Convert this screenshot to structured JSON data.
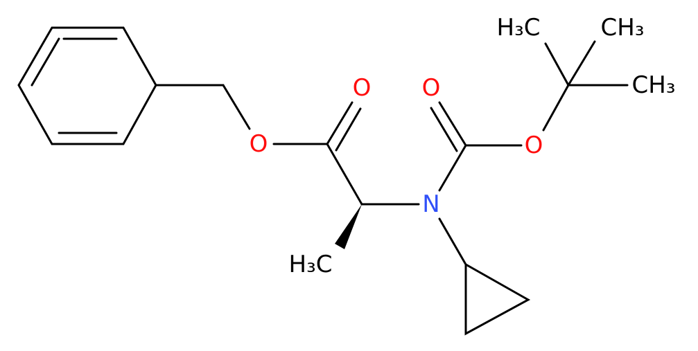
{
  "atoms": [
    {
      "label": "O"
    },
    {
      "label": "O"
    },
    {
      "label": "N"
    },
    {
      "label": "O"
    },
    {
      "label": "O"
    },
    {
      "label": "H₃C"
    },
    {
      "label": "H₃C"
    },
    {
      "label": "CH₃"
    },
    {
      "label": "CH₃"
    }
  ]
}
